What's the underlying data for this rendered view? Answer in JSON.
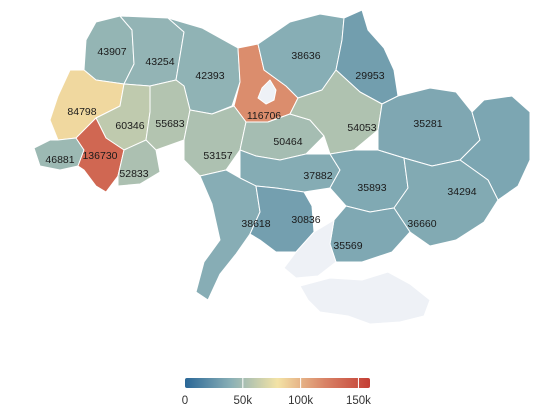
{
  "colors": {
    "scale": [
      "#2a6797",
      "#8ab0b6",
      "#f3e3a6",
      "#d98568",
      "#c43e34"
    ],
    "no_data": "#eef1f6",
    "border": "#ffffff"
  },
  "legend": {
    "min": 0,
    "max": 160000,
    "ticks": [
      {
        "value": 0,
        "label": "0"
      },
      {
        "value": 50000,
        "label": "50k"
      },
      {
        "value": 100000,
        "label": "100k"
      },
      {
        "value": 150000,
        "label": "150k"
      }
    ]
  },
  "regions": [
    {
      "id": "volyn",
      "value": "43907"
    },
    {
      "id": "rivne",
      "value": "43254"
    },
    {
      "id": "zhytomyr",
      "value": "42393"
    },
    {
      "id": "kyiv-oblast",
      "value": "116706"
    },
    {
      "id": "chernihiv",
      "value": "38636"
    },
    {
      "id": "sumy",
      "value": "29953"
    },
    {
      "id": "lviv",
      "value": "84798"
    },
    {
      "id": "ternopil",
      "value": "60346"
    },
    {
      "id": "khmelnytskyi",
      "value": "55683"
    },
    {
      "id": "vinnytsia",
      "value": "53157"
    },
    {
      "id": "cherkasy",
      "value": "50464"
    },
    {
      "id": "poltava",
      "value": "54053"
    },
    {
      "id": "kharkiv",
      "value": "35281"
    },
    {
      "id": "zakarpattia",
      "value": "46881"
    },
    {
      "id": "ivano-frankivsk",
      "value": "136730"
    },
    {
      "id": "chernivtsi",
      "value": "52833"
    },
    {
      "id": "kirovohrad",
      "value": "37882"
    },
    {
      "id": "dnipro",
      "value": "35893"
    },
    {
      "id": "luhansk",
      "value": "34294"
    },
    {
      "id": "odesa",
      "value": "38618"
    },
    {
      "id": "mykolaiv",
      "value": "30836"
    },
    {
      "id": "donetsk",
      "value": "36660"
    },
    {
      "id": "zaporizhzhia",
      "value": "35569"
    },
    {
      "id": "kherson",
      "value": ""
    },
    {
      "id": "crimea",
      "value": ""
    },
    {
      "id": "kyiv-city",
      "value": ""
    }
  ]
}
